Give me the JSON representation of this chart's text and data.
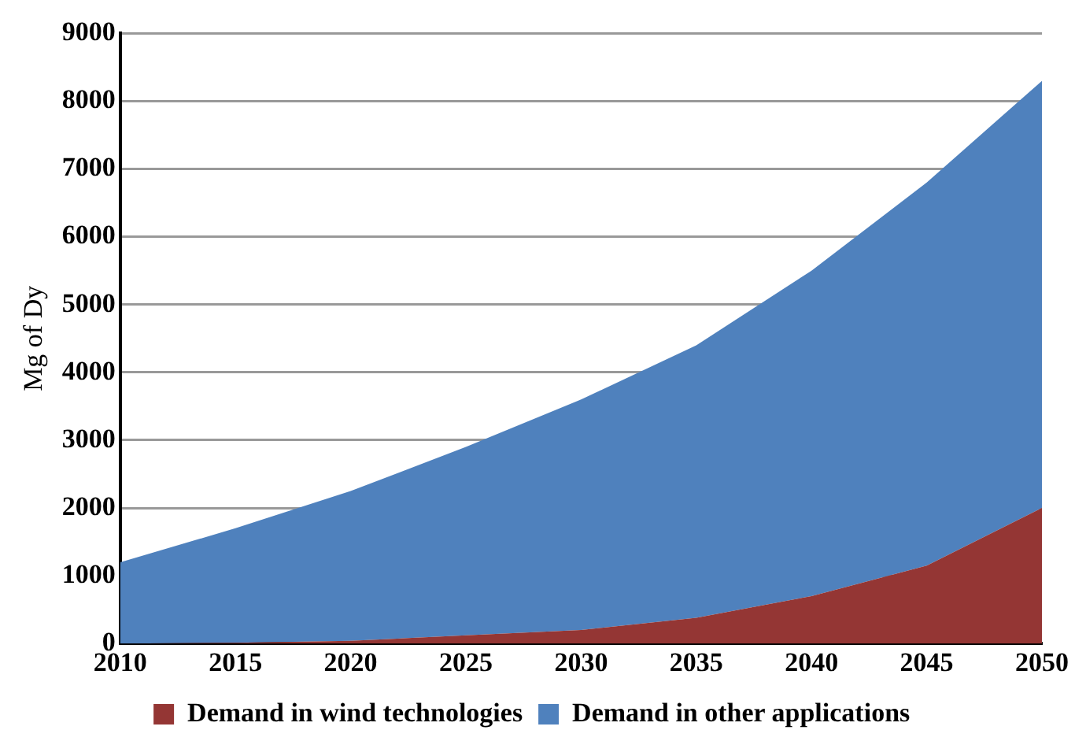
{
  "chart_data": {
    "type": "area",
    "stacked": true,
    "ylabel": "Mg of Dy",
    "x": [
      2010,
      2015,
      2020,
      2025,
      2030,
      2035,
      2040,
      2045,
      2050
    ],
    "series": [
      {
        "name": "Demand in wind technologies",
        "color": "#943634",
        "values": [
          0,
          10,
          40,
          120,
          200,
          380,
          700,
          1150,
          2000
        ]
      },
      {
        "name": "Demand in other applications",
        "color": "#4f81bd",
        "values": [
          1200,
          1690,
          2210,
          2780,
          3400,
          4020,
          4800,
          5650,
          6300
        ]
      }
    ],
    "xlim": [
      2010,
      2050
    ],
    "xticks": [
      2010,
      2015,
      2020,
      2025,
      2030,
      2035,
      2040,
      2045,
      2050
    ],
    "ylim": [
      0,
      9000
    ],
    "yticks": [
      0,
      1000,
      2000,
      3000,
      4000,
      5000,
      6000,
      7000,
      8000,
      9000
    ],
    "grid": "y",
    "legend": "bottom"
  }
}
